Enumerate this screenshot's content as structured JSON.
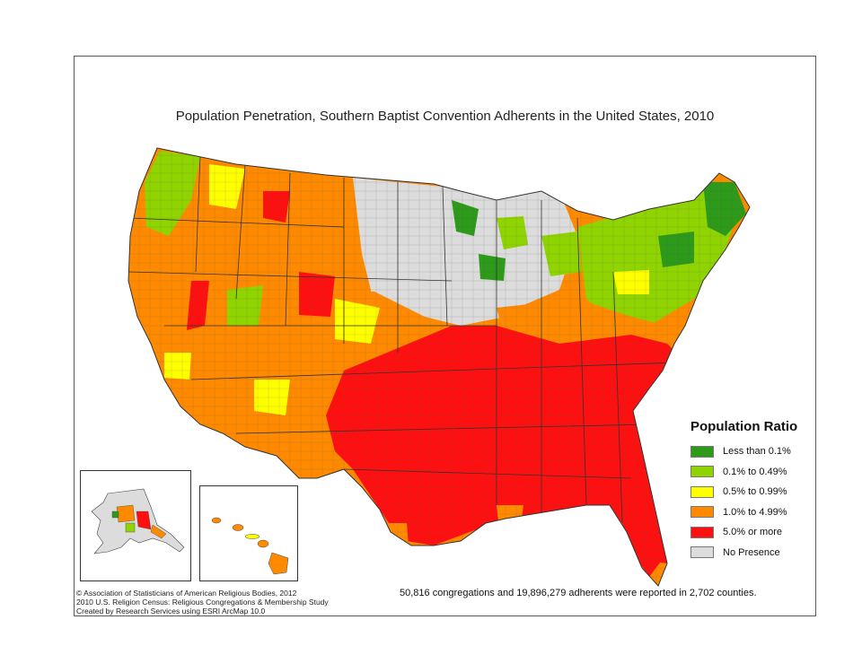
{
  "title": "Population Penetration, Southern Baptist Convention Adherents in the United States, 2010",
  "legend": {
    "title": "Population Ratio",
    "items": [
      {
        "label": "Less than 0.1%",
        "color": "#2e9a1a"
      },
      {
        "label": "0.1% to 0.49%",
        "color": "#8fd400"
      },
      {
        "label": "0.5% to 0.99%",
        "color": "#ffff00"
      },
      {
        "label": "1.0% to 4.99%",
        "color": "#ff8a00"
      },
      {
        "label": "5.0% or more",
        "color": "#ff1010"
      },
      {
        "label": "No Presence",
        "color": "#dcdcdc"
      }
    ]
  },
  "credits": {
    "line1": "© Association of Statisticians of American Religious Bodies, 2012",
    "line2": "2010 U.S. Religion Census: Religious Congregations & Membership Study",
    "line3": "Created by Research Services using ESRI ArcMap 10.0"
  },
  "summary": "50,816 congregations and 19,896,279 adherents were reported in 2,702 counties.",
  "insets": {
    "alaska": "alaska-inset",
    "hawaii": "hawaii-inset"
  }
}
